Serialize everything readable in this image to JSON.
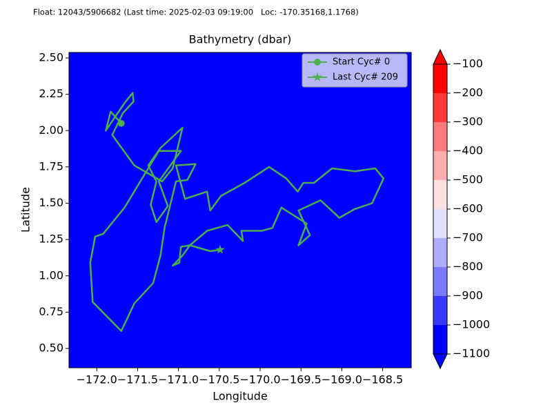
{
  "header": "Float: 12043/5906682 (Last time: 2025-02-03 09:19:00   Loc: -170.35168,1.1768)",
  "chart_data": {
    "type": "line",
    "title": "Bathymetry (dbar)",
    "x_label": "Longitude",
    "y_label": "Latitude",
    "background_color": "#0000ff",
    "xlim": [
      -172.34,
      -168.15
    ],
    "ylim": [
      0.367,
      2.538
    ],
    "xticks": [
      {
        "value": -172.0,
        "label": "−172.0"
      },
      {
        "value": -171.5,
        "label": "−171.5"
      },
      {
        "value": -171.0,
        "label": "−171.0"
      },
      {
        "value": -170.5,
        "label": "−170.5"
      },
      {
        "value": -170.0,
        "label": "−170.0"
      },
      {
        "value": -169.5,
        "label": "−169.5"
      },
      {
        "value": -169.0,
        "label": "−169.0"
      },
      {
        "value": -168.5,
        "label": "−168.5"
      }
    ],
    "yticks": [
      {
        "value": 0.5,
        "label": "0.50"
      },
      {
        "value": 0.75,
        "label": "0.75"
      },
      {
        "value": 1.0,
        "label": "1.00"
      },
      {
        "value": 1.25,
        "label": "1.25"
      },
      {
        "value": 1.5,
        "label": "1.50"
      },
      {
        "value": 1.75,
        "label": "1.75"
      },
      {
        "value": 2.0,
        "label": "2.00"
      },
      {
        "value": 2.25,
        "label": "2.25"
      },
      {
        "value": 2.5,
        "label": "2.50"
      }
    ],
    "track": {
      "color": "#4caf50",
      "x": [
        -171.7,
        -171.83,
        -171.89,
        -171.66,
        -171.56,
        -171.55,
        -171.68,
        -171.81,
        -171.54,
        -171.2,
        -171.07,
        -170.95,
        -171.22,
        -171.37,
        -171.27,
        -171.34,
        -171.27,
        -171.13,
        -171.24,
        -170.97,
        -171.24,
        -171.37,
        -171.66,
        -171.92,
        -172.02,
        -172.08,
        -172.05,
        -171.7,
        -171.54,
        -171.31,
        -171.22,
        -171.17,
        -171.03,
        -170.89,
        -170.79,
        -171.03,
        -170.92,
        -170.65,
        -170.61,
        -170.48,
        -170.19,
        -169.89,
        -169.68,
        -169.54,
        -169.47,
        -169.34,
        -169.12,
        -168.84,
        -168.59,
        -168.49,
        -168.63,
        -168.84,
        -169.03,
        -169.26,
        -169.53,
        -169.39,
        -169.53,
        -169.43,
        -169.74,
        -169.85,
        -169.98,
        -170.23,
        -170.21,
        -170.4,
        -170.65,
        -170.86,
        -170.97,
        -170.99,
        -171.07,
        -170.95,
        -170.86,
        -170.61,
        -170.49
      ],
      "y": [
        2.05,
        2.13,
        2.0,
        2.19,
        2.26,
        2.2,
        2.12,
        1.97,
        1.76,
        1.65,
        1.74,
        2.02,
        1.88,
        1.76,
        1.65,
        1.49,
        1.37,
        1.48,
        1.65,
        1.86,
        1.86,
        1.74,
        1.47,
        1.29,
        1.27,
        1.09,
        0.82,
        0.62,
        0.81,
        0.95,
        1.14,
        1.33,
        1.65,
        1.66,
        1.77,
        1.76,
        1.53,
        1.58,
        1.45,
        1.55,
        1.64,
        1.75,
        1.67,
        1.58,
        1.64,
        1.64,
        1.74,
        1.72,
        1.74,
        1.67,
        1.5,
        1.46,
        1.4,
        1.52,
        1.45,
        1.28,
        1.21,
        1.36,
        1.47,
        1.33,
        1.31,
        1.31,
        1.24,
        1.35,
        1.31,
        1.21,
        1.2,
        1.09,
        1.07,
        1.14,
        1.21,
        1.17,
        1.18
      ]
    },
    "markers": [
      {
        "name": "Start Cyc# 0",
        "marker": "circle",
        "color": "#4caf50",
        "x": -171.7,
        "y": 2.05
      },
      {
        "name": "Last Cyc# 209",
        "marker": "star",
        "color": "#4caf50",
        "x": -170.49,
        "y": 1.18
      }
    ],
    "legend": "upper right",
    "colorbar": {
      "lim": [
        -1100,
        -100
      ],
      "ticks": [
        {
          "value": -1100,
          "label": "−1100"
        },
        {
          "value": -1000,
          "label": "−1000"
        },
        {
          "value": -900,
          "label": "−900"
        },
        {
          "value": -800,
          "label": "−800"
        },
        {
          "value": -700,
          "label": "−700"
        },
        {
          "value": -600,
          "label": "−600"
        },
        {
          "value": -500,
          "label": "−500"
        },
        {
          "value": -400,
          "label": "−400"
        },
        {
          "value": -300,
          "label": "−300"
        },
        {
          "value": -200,
          "label": "−200"
        },
        {
          "value": -100,
          "label": "−100"
        }
      ],
      "colors": [
        "#0000ff",
        "#3a3aff",
        "#7a7aff",
        "#adadff",
        "#e0e0ff",
        "#ffe0e0",
        "#ffadad",
        "#ff7a7a",
        "#ff3a3a",
        "#ff0000"
      ]
    }
  }
}
